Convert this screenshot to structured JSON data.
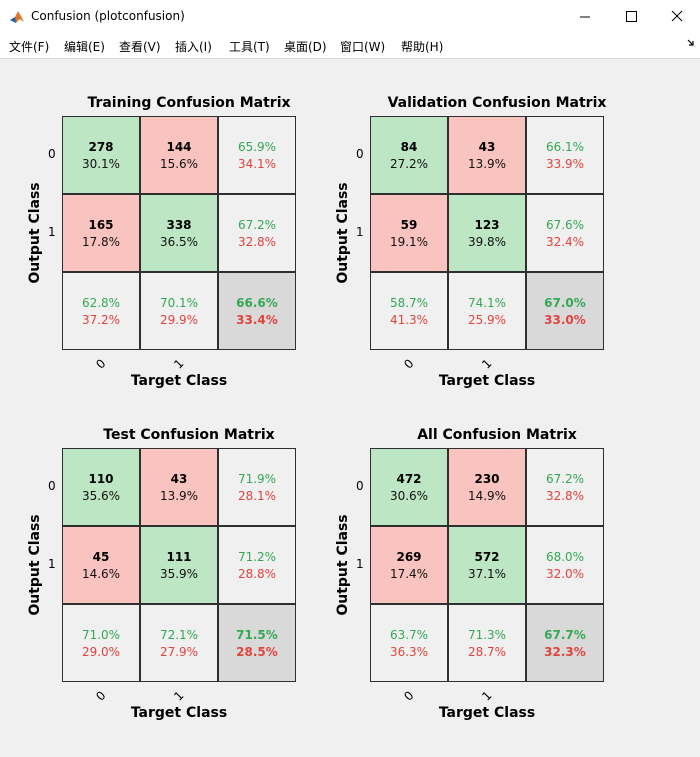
{
  "window": {
    "title": "Confusion (plotconfusion)"
  },
  "menu": [
    "文件(F)",
    "编辑(E)",
    "查看(V)",
    "插入(I)",
    "工具(T)",
    "桌面(D)",
    "窗口(W)",
    "帮助(H)"
  ],
  "colors": {
    "correct_cell": "#bde6c4",
    "incorrect_cell": "#f9c3bf",
    "summary_cell": "#f0f0f0",
    "total_cell": "#d9d9d9",
    "good_text": "#34a853",
    "bad_text": "#e0443d"
  },
  "axis": {
    "xlabel": "Target Class",
    "ylabel": "Output Class",
    "ticks": [
      "0",
      "1"
    ]
  },
  "chart_data": [
    {
      "type": "table",
      "title": "Training Confusion Matrix",
      "counts": [
        [
          "278",
          "144"
        ],
        [
          "165",
          "338"
        ]
      ],
      "cell_pct": [
        [
          "30.1%",
          "15.6%"
        ],
        [
          "17.8%",
          "36.5%"
        ]
      ],
      "row_summary": [
        [
          "65.9%",
          "34.1%"
        ],
        [
          "67.2%",
          "32.8%"
        ]
      ],
      "col_summary": [
        [
          "62.8%",
          "37.2%"
        ],
        [
          "70.1%",
          "29.9%"
        ]
      ],
      "total": [
        "66.6%",
        "33.4%"
      ]
    },
    {
      "type": "table",
      "title": "Validation Confusion Matrix",
      "counts": [
        [
          "84",
          "43"
        ],
        [
          "59",
          "123"
        ]
      ],
      "cell_pct": [
        [
          "27.2%",
          "13.9%"
        ],
        [
          "19.1%",
          "39.8%"
        ]
      ],
      "row_summary": [
        [
          "66.1%",
          "33.9%"
        ],
        [
          "67.6%",
          "32.4%"
        ]
      ],
      "col_summary": [
        [
          "58.7%",
          "41.3%"
        ],
        [
          "74.1%",
          "25.9%"
        ]
      ],
      "total": [
        "67.0%",
        "33.0%"
      ]
    },
    {
      "type": "table",
      "title": "Test Confusion Matrix",
      "counts": [
        [
          "110",
          "43"
        ],
        [
          "45",
          "111"
        ]
      ],
      "cell_pct": [
        [
          "35.6%",
          "13.9%"
        ],
        [
          "14.6%",
          "35.9%"
        ]
      ],
      "row_summary": [
        [
          "71.9%",
          "28.1%"
        ],
        [
          "71.2%",
          "28.8%"
        ]
      ],
      "col_summary": [
        [
          "71.0%",
          "29.0%"
        ],
        [
          "72.1%",
          "27.9%"
        ]
      ],
      "total": [
        "71.5%",
        "28.5%"
      ]
    },
    {
      "type": "table",
      "title": "All Confusion Matrix",
      "counts": [
        [
          "472",
          "230"
        ],
        [
          "269",
          "572"
        ]
      ],
      "cell_pct": [
        [
          "30.6%",
          "14.9%"
        ],
        [
          "17.4%",
          "37.1%"
        ]
      ],
      "row_summary": [
        [
          "67.2%",
          "32.8%"
        ],
        [
          "68.0%",
          "32.0%"
        ]
      ],
      "col_summary": [
        [
          "63.7%",
          "36.3%"
        ],
        [
          "71.3%",
          "28.7%"
        ]
      ],
      "total": [
        "67.7%",
        "32.3%"
      ]
    }
  ]
}
